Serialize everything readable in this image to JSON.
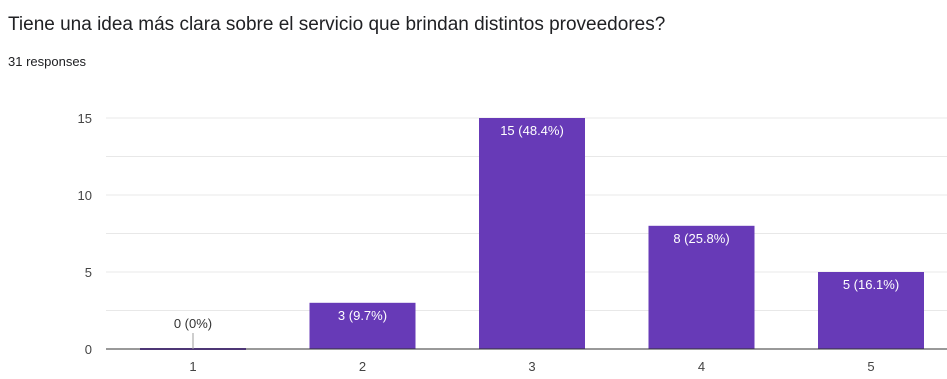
{
  "question": {
    "title": "Tiene una idea más clara sobre el servicio que brindan distintos proveedores?",
    "responses": "31 responses"
  },
  "colors": {
    "bar": "#673ab7",
    "grid": "#e8e8e8",
    "axis": "#333333",
    "tick_text": "#444444",
    "label_light": "#ffffff",
    "label_dark": "#333333"
  },
  "chart_data": {
    "type": "bar",
    "categories": [
      "1",
      "2",
      "3",
      "4",
      "5"
    ],
    "values": [
      0,
      3,
      15,
      8,
      5
    ],
    "data_labels": [
      "0 (0%)",
      "3 (9.7%)",
      "15 (48.4%)",
      "8 (25.8%)",
      "5 (16.1%)"
    ],
    "y_ticks": [
      0,
      5,
      10,
      15
    ],
    "ylim": [
      0,
      15
    ],
    "grid": true,
    "legend": "none"
  }
}
